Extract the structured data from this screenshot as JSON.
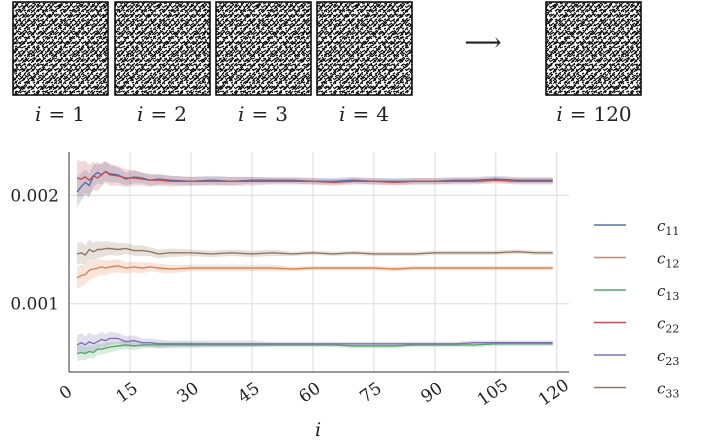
{
  "header": {
    "samples": [
      {
        "var": "i",
        "eq": "=",
        "num": "1"
      },
      {
        "var": "i",
        "eq": "=",
        "num": "2"
      },
      {
        "var": "i",
        "eq": "=",
        "num": "3"
      },
      {
        "var": "i",
        "eq": "=",
        "num": "4"
      },
      {
        "var": "i",
        "eq": "=",
        "num": "120"
      }
    ],
    "arrow": "⟶"
  },
  "chart_data": {
    "type": "line",
    "xlabel": "i",
    "ylabel": "",
    "xlim": [
      0,
      123
    ],
    "ylim": [
      0.00037,
      0.0024
    ],
    "xticks": [
      0,
      15,
      30,
      45,
      60,
      75,
      90,
      105,
      120
    ],
    "yticks": [
      {
        "value": 0.001,
        "label": "0.001"
      },
      {
        "value": 0.002,
        "label": "0.002"
      }
    ],
    "grid": true,
    "legend_position": "right",
    "x": [
      2,
      3,
      4,
      5,
      6,
      7,
      8,
      9,
      10,
      12,
      14,
      16,
      18,
      20,
      22,
      25,
      30,
      35,
      40,
      45,
      50,
      55,
      60,
      65,
      70,
      75,
      80,
      85,
      90,
      95,
      100,
      105,
      110,
      115,
      119
    ],
    "series": [
      {
        "name": "c11",
        "sub": "11",
        "color": "#4c72b0",
        "values": [
          0.00203,
          0.00208,
          0.00212,
          0.00209,
          0.00218,
          0.00221,
          0.00219,
          0.00222,
          0.0022,
          0.00219,
          0.00215,
          0.00217,
          0.00216,
          0.00214,
          0.00215,
          0.00214,
          0.00213,
          0.00214,
          0.00213,
          0.00214,
          0.00214,
          0.00214,
          0.00213,
          0.00213,
          0.00214,
          0.00213,
          0.00213,
          0.00213,
          0.00213,
          0.00214,
          0.00214,
          0.00215,
          0.00214,
          0.00214,
          0.00214
        ],
        "band": [
          0.00014,
          0.00013,
          0.00012,
          0.00011,
          0.0001,
          0.0001,
          9e-05,
          9e-05,
          8e-05,
          7e-05,
          6e-05,
          6e-05,
          5e-05,
          5e-05,
          5e-05,
          4e-05,
          4e-05,
          4e-05,
          4e-05,
          3e-05,
          3e-05,
          3e-05,
          3e-05,
          3e-05,
          3e-05,
          3e-05,
          3e-05,
          3e-05,
          3e-05,
          3e-05,
          3e-05,
          3e-05,
          3e-05,
          3e-05,
          3e-05
        ]
      },
      {
        "name": "c12",
        "sub": "12",
        "color": "#dd8452",
        "values": [
          0.00124,
          0.00126,
          0.00127,
          0.00131,
          0.00132,
          0.00133,
          0.00134,
          0.00133,
          0.00134,
          0.00135,
          0.00133,
          0.00134,
          0.00133,
          0.00134,
          0.00133,
          0.00132,
          0.00133,
          0.00133,
          0.00133,
          0.00133,
          0.00133,
          0.00132,
          0.00133,
          0.00133,
          0.00133,
          0.00133,
          0.00132,
          0.00133,
          0.00133,
          0.00133,
          0.00133,
          0.00133,
          0.00133,
          0.00133,
          0.00133
        ],
        "band": [
          0.0001,
          0.0001,
          9e-05,
          9e-05,
          8e-05,
          8e-05,
          7e-05,
          7e-05,
          6e-05,
          6e-05,
          5e-05,
          5e-05,
          5e-05,
          4e-05,
          4e-05,
          4e-05,
          3e-05,
          3e-05,
          3e-05,
          3e-05,
          3e-05,
          2e-05,
          2e-05,
          2e-05,
          2e-05,
          2e-05,
          2e-05,
          2e-05,
          2e-05,
          2e-05,
          2e-05,
          2e-05,
          2e-05,
          2e-05,
          2e-05
        ]
      },
      {
        "name": "c13",
        "sub": "13",
        "color": "#55a868",
        "values": [
          0.00054,
          0.00055,
          0.00054,
          0.00056,
          0.00055,
          0.00058,
          0.00058,
          0.00059,
          0.0006,
          0.00061,
          0.00062,
          0.00061,
          0.00062,
          0.00062,
          0.00062,
          0.00062,
          0.00062,
          0.00062,
          0.00062,
          0.00062,
          0.00062,
          0.00062,
          0.00062,
          0.00062,
          0.00061,
          0.00061,
          0.00061,
          0.00062,
          0.00062,
          0.00062,
          0.00062,
          0.00063,
          0.00063,
          0.00063,
          0.00063
        ],
        "band": [
          7e-05,
          7e-05,
          6e-05,
          6e-05,
          6e-05,
          5e-05,
          5e-05,
          5e-05,
          5e-05,
          4e-05,
          4e-05,
          4e-05,
          3e-05,
          3e-05,
          3e-05,
          3e-05,
          3e-05,
          2e-05,
          2e-05,
          2e-05,
          2e-05,
          2e-05,
          2e-05,
          2e-05,
          2e-05,
          2e-05,
          2e-05,
          2e-05,
          2e-05,
          2e-05,
          2e-05,
          2e-05,
          2e-05,
          2e-05,
          2e-05
        ]
      },
      {
        "name": "c22",
        "sub": "22",
        "color": "#c44e52",
        "values": [
          0.00216,
          0.00215,
          0.00217,
          0.00214,
          0.00218,
          0.00216,
          0.00219,
          0.00222,
          0.00219,
          0.00218,
          0.00216,
          0.00216,
          0.00215,
          0.00214,
          0.00214,
          0.00213,
          0.00213,
          0.00213,
          0.00213,
          0.00213,
          0.00213,
          0.00213,
          0.00213,
          0.00212,
          0.00213,
          0.00213,
          0.00212,
          0.00213,
          0.00213,
          0.00213,
          0.00213,
          0.00214,
          0.00213,
          0.00213,
          0.00213
        ],
        "band": [
          0.00017,
          0.00016,
          0.00015,
          0.00014,
          0.00013,
          0.00012,
          0.00011,
          0.0001,
          0.0001,
          9e-05,
          8e-05,
          7e-05,
          6e-05,
          6e-05,
          5e-05,
          5e-05,
          4e-05,
          4e-05,
          4e-05,
          4e-05,
          3e-05,
          3e-05,
          3e-05,
          3e-05,
          3e-05,
          3e-05,
          3e-05,
          3e-05,
          3e-05,
          3e-05,
          3e-05,
          3e-05,
          3e-05,
          3e-05,
          3e-05
        ]
      },
      {
        "name": "c23",
        "sub": "23",
        "color": "#8172b3",
        "values": [
          0.00062,
          0.00064,
          0.00062,
          0.00065,
          0.00063,
          0.00065,
          0.00067,
          0.00066,
          0.00068,
          0.00068,
          0.00065,
          0.00066,
          0.00064,
          0.00064,
          0.00063,
          0.00063,
          0.00063,
          0.00063,
          0.00063,
          0.00063,
          0.00063,
          0.00063,
          0.00063,
          0.00063,
          0.00063,
          0.00063,
          0.00063,
          0.00063,
          0.00063,
          0.00063,
          0.00064,
          0.00064,
          0.00064,
          0.00064,
          0.00064
        ],
        "band": [
          9e-05,
          9e-05,
          8e-05,
          8e-05,
          8e-05,
          7e-05,
          7e-05,
          6e-05,
          6e-05,
          5e-05,
          5e-05,
          5e-05,
          4e-05,
          4e-05,
          4e-05,
          3e-05,
          3e-05,
          3e-05,
          3e-05,
          3e-05,
          2e-05,
          2e-05,
          2e-05,
          2e-05,
          2e-05,
          2e-05,
          2e-05,
          2e-05,
          2e-05,
          2e-05,
          2e-05,
          2e-05,
          2e-05,
          2e-05,
          2e-05
        ]
      },
      {
        "name": "c33",
        "sub": "33",
        "color": "#937860",
        "values": [
          0.00146,
          0.00147,
          0.00145,
          0.0015,
          0.00148,
          0.0015,
          0.0015,
          0.00151,
          0.00151,
          0.0015,
          0.00151,
          0.00149,
          0.00149,
          0.00148,
          0.00146,
          0.00147,
          0.00147,
          0.00146,
          0.00147,
          0.00146,
          0.00147,
          0.00146,
          0.00147,
          0.00146,
          0.00147,
          0.00146,
          0.00146,
          0.00146,
          0.00147,
          0.00147,
          0.00147,
          0.00147,
          0.00148,
          0.00147,
          0.00147
        ],
        "band": [
          0.0001,
          0.0001,
          9e-05,
          9e-05,
          8e-05,
          8e-05,
          7e-05,
          7e-05,
          6e-05,
          6e-05,
          5e-05,
          5e-05,
          5e-05,
          4e-05,
          4e-05,
          4e-05,
          3e-05,
          3e-05,
          3e-05,
          3e-05,
          3e-05,
          2e-05,
          2e-05,
          2e-05,
          2e-05,
          2e-05,
          2e-05,
          2e-05,
          2e-05,
          2e-05,
          2e-05,
          2e-05,
          2e-05,
          2e-05,
          2e-05
        ]
      }
    ]
  }
}
